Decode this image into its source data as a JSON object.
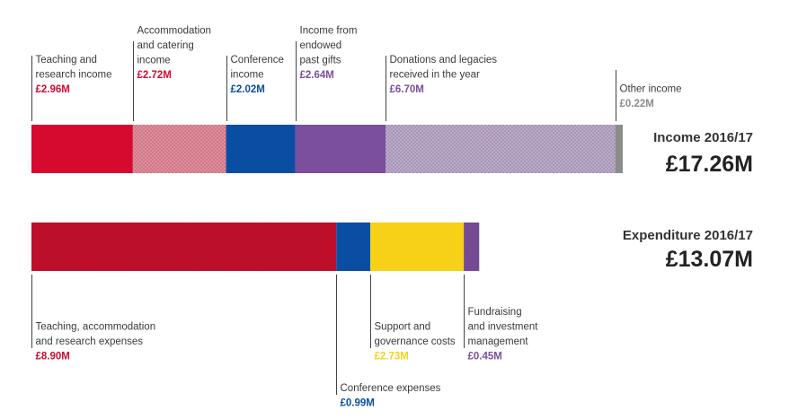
{
  "chart_data": [
    {
      "type": "bar",
      "orientation": "horizontal-stacked",
      "title": "Income 2016/17",
      "total_label": "£17.26M",
      "total": 17.26,
      "unit": "£M",
      "segments": [
        {
          "label": [
            "Teaching and",
            "research income"
          ],
          "value": 2.96,
          "value_label": "£2.96M",
          "color": "#d60a2f",
          "pattern": "solid"
        },
        {
          "label": [
            "Accommodation",
            "and catering",
            "income"
          ],
          "value": 2.72,
          "value_label": "£2.72M",
          "color": "#d60a2f",
          "pattern": "crosshatch"
        },
        {
          "label": [
            "Conference",
            "income"
          ],
          "value": 2.02,
          "value_label": "£2.02M",
          "color": "#0a4ea3",
          "pattern": "solid"
        },
        {
          "label": [
            "Income from",
            "endowed",
            "past gifts"
          ],
          "value": 2.64,
          "value_label": "£2.64M",
          "color": "#7b4f9c",
          "pattern": "solid"
        },
        {
          "label": [
            "Donations and legacies",
            "received in the year"
          ],
          "value": 6.7,
          "value_label": "£6.70M",
          "color": "#7b4f9c",
          "pattern": "crosshatch"
        },
        {
          "label": [
            "Other income"
          ],
          "value": 0.22,
          "value_label": "£0.22M",
          "color": "#8c8c8c",
          "pattern": "solid"
        }
      ]
    },
    {
      "type": "bar",
      "orientation": "horizontal-stacked",
      "title": "Expenditure 2016/17",
      "total_label": "£13.07M",
      "total": 13.07,
      "unit": "£M",
      "segments": [
        {
          "label": [
            "Teaching, accommodation",
            "and research expenses"
          ],
          "value": 8.9,
          "value_label": "£8.90M",
          "color": "#c8102e",
          "pattern": "fine"
        },
        {
          "label": [
            "Conference expenses"
          ],
          "value": 0.99,
          "value_label": "£0.99M",
          "color": "#0a4ea3",
          "pattern": "solid"
        },
        {
          "label": [
            "Support and",
            "governance costs"
          ],
          "value": 2.73,
          "value_label": "£2.73M",
          "color": "#f7d117",
          "pattern": "solid"
        },
        {
          "label": [
            "Fundraising",
            "and investment",
            "management"
          ],
          "value": 0.45,
          "value_label": "£0.45M",
          "color": "#7b4f9c",
          "pattern": "fine"
        }
      ]
    }
  ]
}
